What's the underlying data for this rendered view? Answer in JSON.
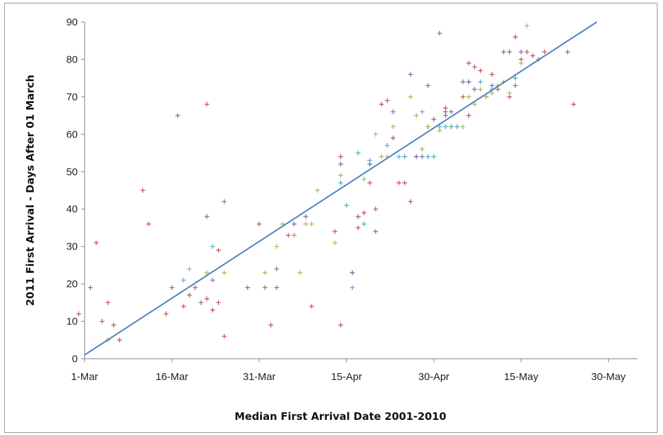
{
  "chart_data": {
    "type": "scatter",
    "title": "",
    "xlabel": "Median First Arrival Date 2001-2010",
    "ylabel": "2011 First Arrival - Days After 01 March",
    "x_axis": {
      "min": 0,
      "max": 95,
      "ticks": [
        0,
        15,
        30,
        45,
        60,
        75,
        90
      ],
      "tick_labels": [
        "1-Mar",
        "16-Mar",
        "31-Mar",
        "15-Apr",
        "30-Apr",
        "15-May",
        "30-May"
      ]
    },
    "y_axis": {
      "min": 0,
      "max": 90,
      "ticks": [
        0,
        10,
        20,
        30,
        40,
        50,
        60,
        70,
        80,
        90
      ],
      "tick_labels": [
        "0",
        "10",
        "20",
        "30",
        "40",
        "50",
        "60",
        "70",
        "80",
        "90"
      ]
    },
    "grid": false,
    "legend": "none",
    "trendline": {
      "color": "#4f81bd",
      "points": [
        [
          0,
          1
        ],
        [
          88,
          90
        ]
      ]
    },
    "series": [
      {
        "color": "#c0504d",
        "points": [
          [
            -1,
            12
          ],
          [
            1,
            19
          ],
          [
            2,
            31
          ],
          [
            3,
            10
          ],
          [
            4,
            15
          ],
          [
            5,
            9
          ],
          [
            6,
            5
          ],
          [
            10,
            45
          ],
          [
            11,
            36
          ],
          [
            14,
            12
          ],
          [
            15,
            19
          ],
          [
            16,
            65
          ],
          [
            17,
            14
          ],
          [
            18,
            17
          ],
          [
            19,
            19
          ],
          [
            21,
            68
          ],
          [
            21,
            16
          ],
          [
            22,
            13
          ],
          [
            23,
            15
          ],
          [
            23,
            29
          ],
          [
            24,
            6
          ],
          [
            28,
            19
          ],
          [
            30,
            36
          ],
          [
            31,
            19
          ],
          [
            32,
            9
          ],
          [
            33,
            19
          ],
          [
            35,
            33
          ],
          [
            36,
            33
          ],
          [
            39,
            14
          ],
          [
            43,
            34
          ],
          [
            44,
            9
          ],
          [
            44,
            54
          ],
          [
            47,
            35
          ],
          [
            48,
            39
          ],
          [
            49,
            47
          ],
          [
            50,
            40
          ],
          [
            51,
            68
          ],
          [
            52,
            69
          ],
          [
            53,
            59
          ],
          [
            54,
            47
          ],
          [
            55,
            47
          ],
          [
            56,
            42
          ],
          [
            59,
            62
          ],
          [
            61,
            87
          ],
          [
            62,
            67
          ],
          [
            62,
            66
          ],
          [
            63,
            62
          ],
          [
            65,
            70
          ],
          [
            66,
            79
          ],
          [
            66,
            65
          ],
          [
            67,
            78
          ],
          [
            68,
            77
          ],
          [
            69,
            70
          ],
          [
            70,
            76
          ],
          [
            71,
            72
          ],
          [
            72,
            82
          ],
          [
            73,
            70
          ],
          [
            74,
            86
          ],
          [
            75,
            80
          ],
          [
            76,
            82
          ],
          [
            77,
            81
          ],
          [
            78,
            80
          ],
          [
            79,
            82
          ],
          [
            83,
            82
          ],
          [
            84,
            68
          ]
        ]
      },
      {
        "color": "#9bbb59",
        "points": [
          [
            4,
            5
          ],
          [
            18,
            24
          ],
          [
            21,
            23
          ],
          [
            24,
            23
          ],
          [
            31,
            23
          ],
          [
            33,
            30
          ],
          [
            34,
            36
          ],
          [
            36,
            33
          ],
          [
            37,
            23
          ],
          [
            38,
            36
          ],
          [
            39,
            36
          ],
          [
            40,
            45
          ],
          [
            43,
            31
          ],
          [
            44,
            49
          ],
          [
            46,
            23
          ],
          [
            47,
            38
          ],
          [
            48,
            48
          ],
          [
            50,
            60
          ],
          [
            51,
            54
          ],
          [
            52,
            54
          ],
          [
            53,
            62
          ],
          [
            55,
            54
          ],
          [
            56,
            70
          ],
          [
            57,
            65
          ],
          [
            58,
            56
          ],
          [
            59,
            62
          ],
          [
            60,
            64
          ],
          [
            61,
            61
          ],
          [
            62,
            62
          ],
          [
            63,
            62
          ],
          [
            64,
            62
          ],
          [
            65,
            62
          ],
          [
            66,
            70
          ],
          [
            67,
            68
          ],
          [
            68,
            72
          ],
          [
            69,
            70
          ],
          [
            70,
            71
          ],
          [
            71,
            73
          ],
          [
            72,
            74
          ],
          [
            73,
            71
          ],
          [
            74,
            75
          ],
          [
            75,
            79
          ],
          [
            76,
            89
          ]
        ]
      },
      {
        "color": "#4bacc6",
        "points": [
          [
            17,
            21
          ],
          [
            22,
            30
          ],
          [
            44,
            47
          ],
          [
            45,
            41
          ],
          [
            46,
            19
          ],
          [
            47,
            55
          ],
          [
            48,
            36
          ],
          [
            49,
            53
          ],
          [
            52,
            57
          ],
          [
            54,
            54
          ],
          [
            55,
            54
          ],
          [
            57,
            54
          ],
          [
            58,
            66
          ],
          [
            59,
            54
          ],
          [
            60,
            54
          ],
          [
            61,
            62
          ],
          [
            62,
            62
          ],
          [
            63,
            62
          ],
          [
            64,
            62
          ],
          [
            66,
            74
          ],
          [
            68,
            74
          ],
          [
            70,
            72
          ],
          [
            74,
            75
          ]
        ]
      },
      {
        "color": "#8064a2",
        "points": [
          [
            20,
            15
          ],
          [
            21,
            38
          ],
          [
            22,
            21
          ],
          [
            24,
            42
          ],
          [
            33,
            24
          ],
          [
            36,
            36
          ],
          [
            38,
            38
          ],
          [
            44,
            52
          ],
          [
            46,
            23
          ],
          [
            47,
            38
          ],
          [
            49,
            52
          ],
          [
            50,
            34
          ],
          [
            53,
            66
          ],
          [
            56,
            76
          ],
          [
            57,
            54
          ],
          [
            58,
            54
          ],
          [
            59,
            73
          ],
          [
            60,
            64
          ],
          [
            62,
            65
          ],
          [
            63,
            66
          ],
          [
            65,
            74
          ],
          [
            66,
            74
          ],
          [
            67,
            72
          ],
          [
            70,
            73
          ],
          [
            73,
            82
          ],
          [
            74,
            73
          ],
          [
            75,
            82
          ]
        ]
      }
    ]
  }
}
